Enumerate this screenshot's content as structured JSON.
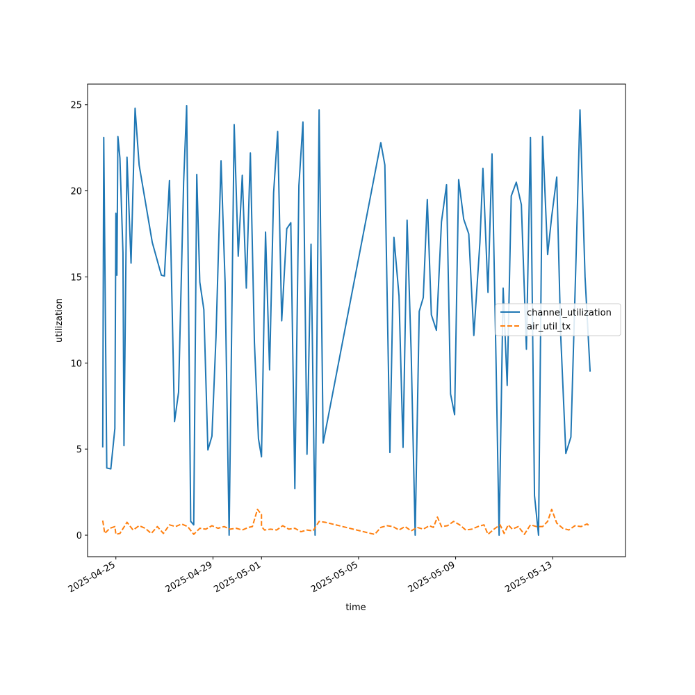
{
  "chart_data": {
    "type": "line",
    "title": "",
    "xlabel": "time",
    "ylabel": "utilization",
    "x_type": "date",
    "xlim": [
      "2025-04-23T20:00",
      "2025-05-16T00:00"
    ],
    "ylim": [
      -1.25,
      26.2
    ],
    "yticks": [
      0,
      5,
      10,
      15,
      20,
      25
    ],
    "xticks": [
      "2025-04-25",
      "2025-04-29",
      "2025-05-01",
      "2025-05-05",
      "2025-05-09",
      "2025-05-13"
    ],
    "legend": {
      "position": "center-right",
      "entries": [
        "channel_utilization",
        "air_util_tx"
      ]
    },
    "grid": false,
    "series": [
      {
        "name": "channel_utilization",
        "color": "#1f77b4",
        "style": "solid",
        "points": [
          [
            "2025-04-24T11:00",
            5.1
          ],
          [
            "2025-04-24T12:00",
            23.1
          ],
          [
            "2025-04-24T15:00",
            3.9
          ],
          [
            "2025-04-24T19:00",
            3.85
          ],
          [
            "2025-04-24T23:00",
            6.2
          ],
          [
            "2025-04-25T00:00",
            18.7
          ],
          [
            "2025-04-25T01:00",
            15.1
          ],
          [
            "2025-04-25T02:00",
            23.15
          ],
          [
            "2025-04-25T04:00",
            21.9
          ],
          [
            "2025-04-25T07:00",
            16.4
          ],
          [
            "2025-04-25T08:00",
            5.2
          ],
          [
            "2025-04-25T11:00",
            21.95
          ],
          [
            "2025-04-25T15:00",
            15.8
          ],
          [
            "2025-04-25T19:00",
            24.8
          ],
          [
            "2025-04-25T23:00",
            21.5
          ],
          [
            "2025-04-26T12:00",
            17.0
          ],
          [
            "2025-04-26T21:00",
            15.1
          ],
          [
            "2025-04-27T00:00",
            15.05
          ],
          [
            "2025-04-27T05:00",
            20.6
          ],
          [
            "2025-04-27T10:00",
            6.6
          ],
          [
            "2025-04-27T14:00",
            8.3
          ],
          [
            "2025-04-27T19:00",
            20.5
          ],
          [
            "2025-04-27T22:00",
            24.95
          ],
          [
            "2025-04-28T02:00",
            0.8
          ],
          [
            "2025-04-28T05:00",
            0.6
          ],
          [
            "2025-04-28T08:00",
            20.95
          ],
          [
            "2025-04-28T11:00",
            14.7
          ],
          [
            "2025-04-28T15:00",
            13.1
          ],
          [
            "2025-04-28T19:00",
            4.95
          ],
          [
            "2025-04-28T23:00",
            5.75
          ],
          [
            "2025-04-29T03:00",
            11.5
          ],
          [
            "2025-04-29T08:00",
            21.75
          ],
          [
            "2025-04-29T12:00",
            14.7
          ],
          [
            "2025-04-29T16:00",
            0.0
          ],
          [
            "2025-04-29T21:00",
            23.85
          ],
          [
            "2025-04-30T01:00",
            16.2
          ],
          [
            "2025-04-30T05:00",
            20.9
          ],
          [
            "2025-04-30T09:00",
            14.35
          ],
          [
            "2025-04-30T13:00",
            22.2
          ],
          [
            "2025-04-30T17:00",
            11.2
          ],
          [
            "2025-04-30T21:00",
            5.6
          ],
          [
            "2025-05-01T00:00",
            4.55
          ],
          [
            "2025-05-01T04:00",
            17.6
          ],
          [
            "2025-05-01T08:00",
            9.6
          ],
          [
            "2025-05-01T12:00",
            19.9
          ],
          [
            "2025-05-01T16:00",
            23.45
          ],
          [
            "2025-05-01T20:00",
            12.45
          ],
          [
            "2025-05-02T01:00",
            17.8
          ],
          [
            "2025-05-02T05:00",
            18.15
          ],
          [
            "2025-05-02T09:00",
            2.7
          ],
          [
            "2025-05-02T13:00",
            20.3
          ],
          [
            "2025-05-02T17:00",
            24.0
          ],
          [
            "2025-05-02T21:00",
            4.7
          ],
          [
            "2025-05-03T01:00",
            16.9
          ],
          [
            "2025-05-03T05:00",
            0.0
          ],
          [
            "2025-05-03T09:00",
            24.7
          ],
          [
            "2025-05-03T13:00",
            5.35
          ],
          [
            "2025-05-05T22:00",
            22.8
          ],
          [
            "2025-05-06T02:00",
            21.5
          ],
          [
            "2025-05-06T07:00",
            4.8
          ],
          [
            "2025-05-06T11:00",
            17.3
          ],
          [
            "2025-05-06T16:00",
            13.9
          ],
          [
            "2025-05-06T20:00",
            5.1
          ],
          [
            "2025-05-07T00:00",
            18.3
          ],
          [
            "2025-05-07T04:00",
            10.7
          ],
          [
            "2025-05-07T08:00",
            0.0
          ],
          [
            "2025-05-07T12:00",
            13.0
          ],
          [
            "2025-05-07T16:00",
            13.8
          ],
          [
            "2025-05-07T20:00",
            19.5
          ],
          [
            "2025-05-08T00:00",
            12.8
          ],
          [
            "2025-05-08T05:00",
            11.9
          ],
          [
            "2025-05-08T10:00",
            18.2
          ],
          [
            "2025-05-08T15:00",
            20.35
          ],
          [
            "2025-05-08T19:00",
            8.2
          ],
          [
            "2025-05-08T23:00",
            7.0
          ],
          [
            "2025-05-09T03:00",
            20.65
          ],
          [
            "2025-05-09T08:00",
            18.35
          ],
          [
            "2025-05-09T13:00",
            17.5
          ],
          [
            "2025-05-09T18:00",
            11.6
          ],
          [
            "2025-05-10T00:00",
            17.0
          ],
          [
            "2025-05-10T03:00",
            21.3
          ],
          [
            "2025-05-10T08:00",
            14.1
          ],
          [
            "2025-05-10T12:00",
            22.15
          ],
          [
            "2025-05-10T16:00",
            10.0
          ],
          [
            "2025-05-10T19:00",
            0.0
          ],
          [
            "2025-05-10T23:00",
            14.35
          ],
          [
            "2025-05-11T03:00",
            8.7
          ],
          [
            "2025-05-11T07:00",
            19.7
          ],
          [
            "2025-05-11T12:00",
            20.5
          ],
          [
            "2025-05-11T17:00",
            19.2
          ],
          [
            "2025-05-11T22:00",
            10.8
          ],
          [
            "2025-05-12T02:00",
            23.1
          ],
          [
            "2025-05-12T06:00",
            2.3
          ],
          [
            "2025-05-12T10:00",
            0.0
          ],
          [
            "2025-05-12T14:00",
            23.15
          ],
          [
            "2025-05-12T19:00",
            16.3
          ],
          [
            "2025-05-12T23:00",
            18.5
          ],
          [
            "2025-05-13T04:00",
            20.8
          ],
          [
            "2025-05-13T08:00",
            11.5
          ],
          [
            "2025-05-13T13:00",
            4.75
          ],
          [
            "2025-05-13T18:00",
            5.7
          ],
          [
            "2025-05-13T23:00",
            15.9
          ],
          [
            "2025-05-14T03:00",
            24.7
          ],
          [
            "2025-05-14T08:00",
            15.0
          ],
          [
            "2025-05-14T13:00",
            9.5
          ]
        ]
      },
      {
        "name": "air_util_tx",
        "color": "#ff7f0e",
        "style": "dashed",
        "points": [
          [
            "2025-04-24T11:00",
            0.85
          ],
          [
            "2025-04-24T13:00",
            0.1
          ],
          [
            "2025-04-24T18:00",
            0.4
          ],
          [
            "2025-04-24T23:00",
            0.5
          ],
          [
            "2025-04-25T00:00",
            0.05
          ],
          [
            "2025-04-25T04:00",
            0.1
          ],
          [
            "2025-04-25T11:00",
            0.75
          ],
          [
            "2025-04-25T17:00",
            0.3
          ],
          [
            "2025-04-25T23:00",
            0.55
          ],
          [
            "2025-04-26T05:00",
            0.4
          ],
          [
            "2025-04-26T11:00",
            0.1
          ],
          [
            "2025-04-26T17:00",
            0.5
          ],
          [
            "2025-04-26T23:00",
            0.1
          ],
          [
            "2025-04-27T05:00",
            0.6
          ],
          [
            "2025-04-27T11:00",
            0.5
          ],
          [
            "2025-04-27T17:00",
            0.65
          ],
          [
            "2025-04-27T23:00",
            0.5
          ],
          [
            "2025-04-28T05:00",
            0.05
          ],
          [
            "2025-04-28T11:00",
            0.4
          ],
          [
            "2025-04-28T17:00",
            0.35
          ],
          [
            "2025-04-28T23:00",
            0.55
          ],
          [
            "2025-04-29T05:00",
            0.4
          ],
          [
            "2025-04-29T11:00",
            0.5
          ],
          [
            "2025-04-29T17:00",
            0.35
          ],
          [
            "2025-04-29T23:00",
            0.4
          ],
          [
            "2025-04-30T05:00",
            0.3
          ],
          [
            "2025-04-30T11:00",
            0.45
          ],
          [
            "2025-04-30T15:00",
            0.5
          ],
          [
            "2025-04-30T20:00",
            1.5
          ],
          [
            "2025-04-31T00:00",
            1.2
          ],
          [
            "2025-05-01T00:00",
            0.5
          ],
          [
            "2025-05-01T03:00",
            0.3
          ],
          [
            "2025-05-01T09:00",
            0.35
          ],
          [
            "2025-05-01T15:00",
            0.3
          ],
          [
            "2025-05-01T21:00",
            0.55
          ],
          [
            "2025-05-02T03:00",
            0.35
          ],
          [
            "2025-05-02T09:00",
            0.4
          ],
          [
            "2025-05-02T15:00",
            0.2
          ],
          [
            "2025-05-02T21:00",
            0.3
          ],
          [
            "2025-05-03T03:00",
            0.25
          ],
          [
            "2025-05-03T09:00",
            0.8
          ],
          [
            "2025-05-03T15:00",
            0.75
          ],
          [
            "2025-05-05T12:00",
            0.1
          ],
          [
            "2025-05-05T16:00",
            0.05
          ],
          [
            "2025-05-05T22:00",
            0.45
          ],
          [
            "2025-05-06T04:00",
            0.55
          ],
          [
            "2025-05-06T10:00",
            0.5
          ],
          [
            "2025-05-06T16:00",
            0.3
          ],
          [
            "2025-05-06T22:00",
            0.5
          ],
          [
            "2025-05-07T04:00",
            0.25
          ],
          [
            "2025-05-07T10:00",
            0.45
          ],
          [
            "2025-05-07T16:00",
            0.35
          ],
          [
            "2025-05-07T22:00",
            0.55
          ],
          [
            "2025-05-08T02:00",
            0.45
          ],
          [
            "2025-05-08T06:00",
            1.05
          ],
          [
            "2025-05-08T10:00",
            0.5
          ],
          [
            "2025-05-08T16:00",
            0.55
          ],
          [
            "2025-05-08T22:00",
            0.8
          ],
          [
            "2025-05-09T04:00",
            0.6
          ],
          [
            "2025-05-09T10:00",
            0.3
          ],
          [
            "2025-05-09T16:00",
            0.35
          ],
          [
            "2025-05-09T22:00",
            0.5
          ],
          [
            "2025-05-10T04:00",
            0.6
          ],
          [
            "2025-05-10T08:00",
            0.05
          ],
          [
            "2025-05-10T14:00",
            0.35
          ],
          [
            "2025-05-10T20:00",
            0.6
          ],
          [
            "2025-05-11T00:00",
            0.1
          ],
          [
            "2025-05-11T04:00",
            0.6
          ],
          [
            "2025-05-11T08:00",
            0.35
          ],
          [
            "2025-05-11T14:00",
            0.5
          ],
          [
            "2025-05-11T20:00",
            0.05
          ],
          [
            "2025-05-12T02:00",
            0.6
          ],
          [
            "2025-05-12T08:00",
            0.5
          ],
          [
            "2025-05-12T14:00",
            0.5
          ],
          [
            "2025-05-12T19:00",
            0.8
          ],
          [
            "2025-05-12T23:00",
            1.5
          ],
          [
            "2025-05-13T04:00",
            0.7
          ],
          [
            "2025-05-13T10:00",
            0.4
          ],
          [
            "2025-05-13T16:00",
            0.3
          ],
          [
            "2025-05-13T22:00",
            0.55
          ],
          [
            "2025-05-14T04:00",
            0.5
          ],
          [
            "2025-05-14T10:00",
            0.65
          ],
          [
            "2025-05-14T13:00",
            0.5
          ]
        ]
      }
    ]
  }
}
